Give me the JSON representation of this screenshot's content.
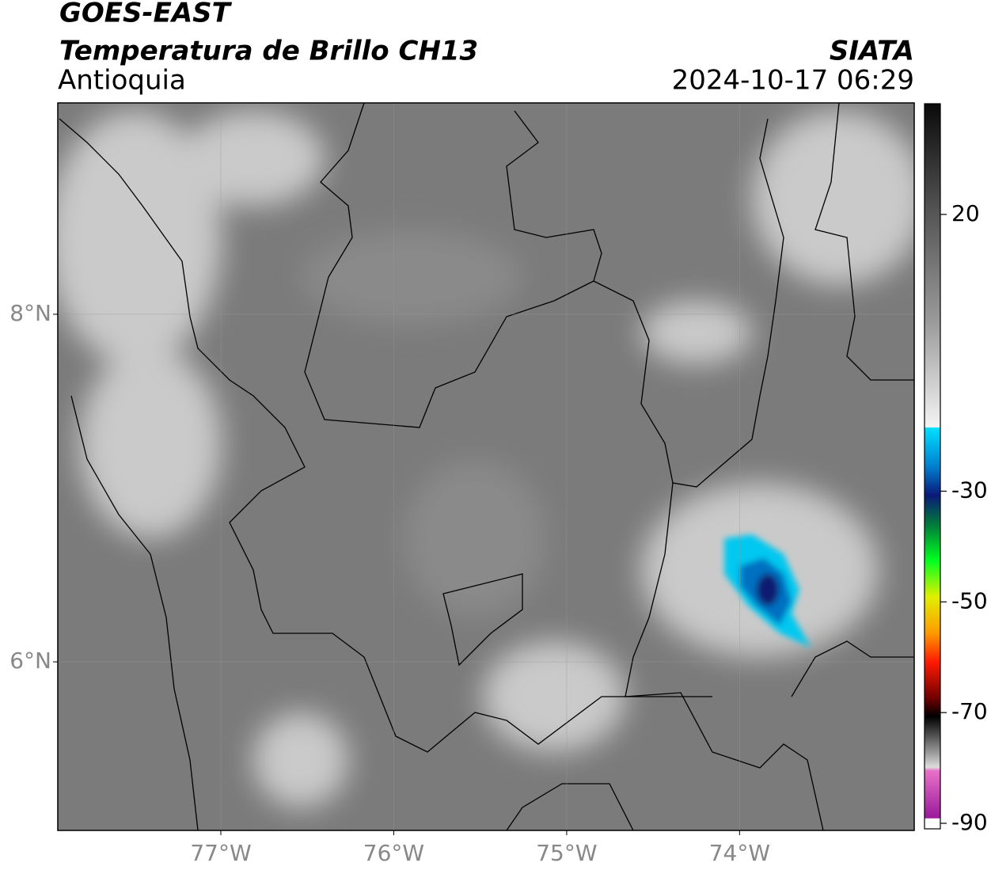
{
  "header": {
    "title": "GOES-EAST",
    "subtitle": "Temperatura de Brillo CH13",
    "region": "Antioquia",
    "source": "SIATA",
    "datetime": "2024-10-17 06:29"
  },
  "chart_data": {
    "type": "map",
    "xlim": [
      -77.943,
      -72.99
    ],
    "ylim": [
      5.03,
      9.216
    ],
    "xticks": [
      {
        "value": -77,
        "label": "77°W"
      },
      {
        "value": -76,
        "label": "76°W"
      },
      {
        "value": -75,
        "label": "75°W"
      },
      {
        "value": -74,
        "label": "74°W"
      }
    ],
    "yticks": [
      {
        "value": 6,
        "label": "6°N"
      },
      {
        "value": 8,
        "label": "8°N"
      }
    ],
    "grid": true,
    "colorbar": {
      "lim": [
        -91,
        40
      ],
      "ticks": [
        20,
        -30,
        -50,
        -70,
        -90
      ]
    }
  }
}
